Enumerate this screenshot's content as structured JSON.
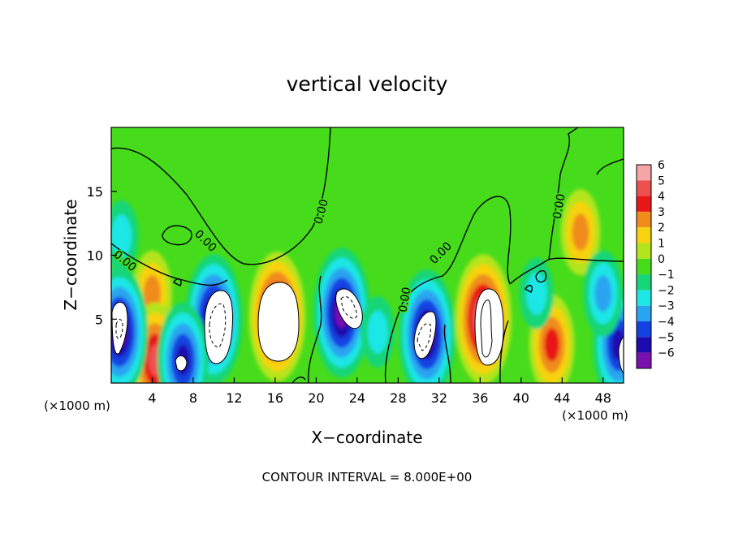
{
  "chart_data": {
    "type": "heatmap",
    "title": "vertical velocity",
    "xlabel": "X−coordinate",
    "ylabel": "Z−coordinate",
    "x_unit_left": "(×1000 m)",
    "x_unit_right": "(×1000 m)",
    "footer": "CONTOUR INTERVAL = 8.000E+00",
    "contour_label": "0.00",
    "xlim": [
      0,
      50
    ],
    "ylim": [
      0,
      20
    ],
    "x_ticks": [
      4,
      8,
      12,
      16,
      20,
      24,
      28,
      32,
      36,
      40,
      44,
      48
    ],
    "y_ticks": [
      5,
      10,
      15
    ],
    "colorbar": {
      "levels": [
        6,
        5,
        4,
        3,
        2,
        1,
        0,
        -1,
        -2,
        -3,
        -4,
        -5,
        -6
      ],
      "labels": [
        "6",
        "5",
        "4",
        "3",
        "2",
        "1",
        "0",
        "−1",
        "−2",
        "−3",
        "−4",
        "−5",
        "−6"
      ],
      "colors": [
        "#f4a6a6",
        "#ee5050",
        "#e81818",
        "#f08c1c",
        "#f8d20e",
        "#b4e41c",
        "#46dc1c",
        "#18d678",
        "#1ce6e6",
        "#2aa4f0",
        "#1442e2",
        "#1c0cb0",
        "#7a10b0"
      ]
    },
    "background": "#46dc1c",
    "features": [
      {
        "kind": "updraft",
        "x": 16.2,
        "z": 5.2,
        "peak": 6
      },
      {
        "kind": "updraft",
        "x": 36.3,
        "z": 5.0,
        "peak": 6
      },
      {
        "kind": "updraft",
        "x": 43.0,
        "z": 3.0,
        "peak": 4
      },
      {
        "kind": "updraft",
        "x": 45.8,
        "z": 11.8,
        "peak": 3
      },
      {
        "kind": "updraft",
        "x": 4.0,
        "z": 7.0,
        "peak": 3
      },
      {
        "kind": "updraft",
        "x": 4.3,
        "z": 1.8,
        "peak": 5
      },
      {
        "kind": "downdraft",
        "x": 10.0,
        "z": 5.0,
        "peak": -6
      },
      {
        "kind": "downdraft",
        "x": 22.5,
        "z": 5.5,
        "peak": -6
      },
      {
        "kind": "downdraft",
        "x": 30.8,
        "z": 3.8,
        "peak": -6
      },
      {
        "kind": "downdraft",
        "x": 0.8,
        "z": 4.0,
        "peak": -6
      },
      {
        "kind": "downdraft",
        "x": 7.0,
        "z": 1.8,
        "peak": -5
      },
      {
        "kind": "downdraft",
        "x": 49.5,
        "z": 3.0,
        "peak": -5
      },
      {
        "kind": "downdraft",
        "x": 48.0,
        "z": 7.0,
        "peak": -3
      },
      {
        "kind": "downdraft",
        "x": 1.0,
        "z": 11.5,
        "peak": -2
      },
      {
        "kind": "downdraft",
        "x": 41.5,
        "z": 7.0,
        "peak": -2
      },
      {
        "kind": "downdraft",
        "x": 26.0,
        "z": 4.0,
        "peak": -2
      }
    ]
  }
}
